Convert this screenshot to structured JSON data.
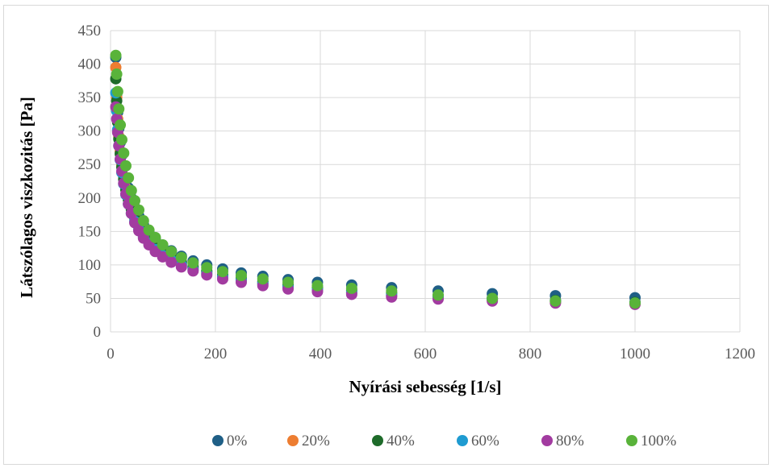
{
  "chart_data": {
    "type": "scatter",
    "title": "",
    "xlabel": "Nyírási sebesség [1/s]",
    "ylabel": "Látszólagos viszkozitás [Pa]",
    "xlim": [
      0,
      1200
    ],
    "ylim": [
      0,
      450
    ],
    "xticks": [
      "0",
      "200",
      "400",
      "600",
      "800",
      "1000",
      "1200"
    ],
    "yticks": [
      "0",
      "50",
      "100",
      "150",
      "200",
      "250",
      "300",
      "350",
      "400",
      "450"
    ],
    "grid": true,
    "legend_position": "bottom",
    "x": [
      10,
      11.7,
      13.6,
      15.8,
      18.5,
      21.5,
      25.1,
      29.2,
      34.1,
      39.7,
      46.2,
      53.9,
      62.8,
      73.2,
      85.3,
      99.4,
      115.9,
      135.1,
      157.4,
      183.5,
      213.8,
      249.2,
      290.4,
      338.5,
      394.5,
      459.8,
      535.9,
      624.6,
      727.9,
      848.3,
      1000
    ],
    "series": [
      {
        "name": "0%",
        "color": "#1f5f86",
        "values": [
          410,
          355,
          328,
          304,
          283,
          264,
          246,
          230,
          215,
          200,
          186,
          173,
          160,
          149,
          139,
          129,
          121,
          113,
          106,
          100,
          94,
          88,
          83,
          78,
          74,
          70,
          66,
          61,
          57,
          54,
          51
        ]
      },
      {
        "name": "20%",
        "color": "#ed7d31",
        "values": [
          395,
          350,
          318,
          292,
          270,
          250,
          232,
          215,
          200,
          186,
          172,
          159,
          148,
          137,
          127,
          118,
          110,
          102,
          95,
          89,
          83,
          77,
          72,
          67,
          62,
          58,
          54,
          51,
          48,
          45,
          42
        ]
      },
      {
        "name": "40%",
        "color": "#1e6b2a",
        "values": [
          378,
          345,
          313,
          288,
          266,
          246,
          228,
          212,
          197,
          183,
          170,
          158,
          147,
          137,
          127,
          119,
          111,
          104,
          97,
          91,
          85,
          80,
          75,
          70,
          66,
          62,
          58,
          54,
          50,
          47,
          44
        ]
      },
      {
        "name": "60%",
        "color": "#1f9bd1",
        "values": [
          357,
          330,
          302,
          278,
          257,
          238,
          221,
          205,
          191,
          177,
          165,
          153,
          142,
          132,
          123,
          114,
          107,
          100,
          93,
          87,
          82,
          77,
          72,
          67,
          63,
          59,
          55,
          52,
          49,
          46,
          43
        ]
      },
      {
        "name": "80%",
        "color": "#a23ba0",
        "values": [
          336,
          318,
          298,
          278,
          258,
          240,
          222,
          206,
          191,
          177,
          163,
          151,
          140,
          130,
          120,
          112,
          104,
          97,
          91,
          85,
          79,
          74,
          69,
          64,
          60,
          56,
          52,
          49,
          46,
          43,
          41
        ]
      },
      {
        "name": "100%",
        "color": "#59b33a",
        "values": [
          413,
          385,
          359,
          333,
          309,
          287,
          267,
          248,
          230,
          211,
          196,
          182,
          166,
          152,
          141,
          130,
          120,
          111,
          103,
          96,
          90,
          84,
          79,
          74,
          69,
          65,
          61,
          55,
          50,
          46,
          43
        ]
      }
    ]
  }
}
